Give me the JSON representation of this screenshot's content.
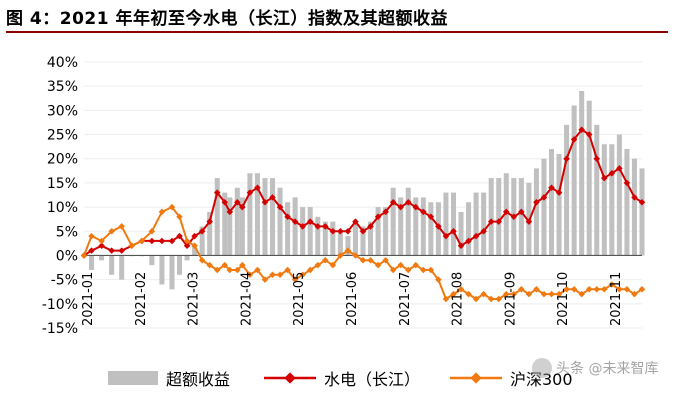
{
  "figure": {
    "title": "图 4：2021 年年初至今水电（长江）指数及其超额收益"
  },
  "chart_data": {
    "type": "bar",
    "title": "图 4：2021 年年初至今水电（长江）指数及其超额收益",
    "xlabel": "",
    "ylabel": "",
    "ylim": [
      -15,
      40
    ],
    "yticks": [
      "-15%",
      "-10%",
      "-5%",
      "0%",
      "5%",
      "10%",
      "15%",
      "20%",
      "25%",
      "30%",
      "35%",
      "40%"
    ],
    "ytick_values": [
      -15,
      -10,
      -5,
      0,
      5,
      10,
      15,
      20,
      25,
      30,
      35,
      40
    ],
    "xticks": [
      "2021-01",
      "2021-02",
      "2021-03",
      "2021-04",
      "2021-05",
      "2021-06",
      "2021-07",
      "2021-08",
      "2021-09",
      "2021-10",
      "2021-11"
    ],
    "x_start": "2021-01-04",
    "x_end": "2021-11-12",
    "legend": [
      "超额收益",
      "水电（长江）",
      "沪深300"
    ],
    "series": [
      {
        "name": "水电（长江）",
        "type": "line",
        "color": "#d40000",
        "x": [
          0,
          3,
          7,
          11,
          15,
          19,
          23,
          27,
          31,
          35,
          38,
          41,
          44,
          47,
          50,
          53,
          56,
          58,
          61,
          63,
          66,
          69,
          72,
          75,
          78,
          81,
          84,
          87,
          90,
          93,
          96,
          99,
          102,
          105,
          108,
          111,
          114,
          117,
          120,
          123,
          126,
          129,
          132,
          135,
          138,
          141,
          144,
          147,
          150,
          153,
          156,
          159,
          162,
          165,
          168,
          171,
          174,
          177,
          180,
          183,
          186,
          189,
          192,
          195,
          198,
          201,
          204,
          207,
          210,
          213,
          216,
          219,
          222
        ],
        "y": [
          0,
          1,
          2,
          1,
          1,
          2,
          3,
          3,
          3,
          3,
          4,
          2,
          4,
          5,
          7,
          13,
          11,
          9,
          11,
          10,
          13,
          14,
          11,
          12,
          10,
          8,
          7,
          6,
          7,
          6,
          6,
          5,
          5,
          5,
          7,
          5,
          6,
          8,
          9,
          11,
          10,
          11,
          10,
          9,
          8,
          6,
          4,
          5,
          2,
          3,
          4,
          5,
          7,
          7,
          9,
          8,
          9,
          7,
          11,
          12,
          14,
          13,
          20,
          24,
          26,
          25,
          20,
          16,
          17,
          18,
          15,
          12,
          11
        ]
      },
      {
        "name": "沪深300",
        "type": "line",
        "color": "#f07a10",
        "x": [
          0,
          3,
          7,
          11,
          15,
          19,
          23,
          27,
          31,
          35,
          38,
          41,
          44,
          47,
          50,
          53,
          56,
          58,
          61,
          63,
          66,
          69,
          72,
          75,
          78,
          81,
          84,
          87,
          90,
          93,
          96,
          99,
          102,
          105,
          108,
          111,
          114,
          117,
          120,
          123,
          126,
          129,
          132,
          135,
          138,
          141,
          144,
          147,
          150,
          153,
          156,
          159,
          162,
          165,
          168,
          171,
          174,
          177,
          180,
          183,
          186,
          189,
          192,
          195,
          198,
          201,
          204,
          207,
          210,
          213,
          216,
          219,
          222
        ],
        "y": [
          0,
          4,
          3,
          5,
          6,
          2,
          3,
          5,
          9,
          10,
          8,
          3,
          2,
          -1,
          -2,
          -3,
          -2,
          -3,
          -3,
          -2,
          -4,
          -3,
          -5,
          -4,
          -4,
          -3,
          -5,
          -4,
          -3,
          -2,
          -1,
          -2,
          0,
          1,
          0,
          -1,
          -1,
          -2,
          -1,
          -3,
          -2,
          -3,
          -2,
          -3,
          -3,
          -5,
          -9,
          -8,
          -7,
          -8,
          -9,
          -8,
          -9,
          -9,
          -8,
          -8,
          -7,
          -8,
          -7,
          -8,
          -8,
          -8,
          -7,
          -7,
          -8,
          -7,
          -7,
          -7,
          -6,
          -7,
          -7,
          -8,
          -7
        ]
      },
      {
        "name": "超额收益",
        "type": "bar",
        "color": "#c0c0c0",
        "x": [
          0,
          3,
          7,
          11,
          15,
          19,
          23,
          27,
          31,
          35,
          38,
          41,
          44,
          47,
          50,
          53,
          56,
          58,
          61,
          63,
          66,
          69,
          72,
          75,
          78,
          81,
          84,
          87,
          90,
          93,
          96,
          99,
          102,
          105,
          108,
          111,
          114,
          117,
          120,
          123,
          126,
          129,
          132,
          135,
          138,
          141,
          144,
          147,
          150,
          153,
          156,
          159,
          162,
          165,
          168,
          171,
          174,
          177,
          180,
          183,
          186,
          189,
          192,
          195,
          198,
          201,
          204,
          207,
          210,
          213,
          216,
          219,
          222
        ],
        "y": [
          0,
          -3,
          -1,
          -4,
          -5,
          0,
          0,
          -2,
          -6,
          -7,
          -4,
          -1,
          2,
          6,
          9,
          16,
          13,
          12,
          14,
          12,
          17,
          17,
          16,
          16,
          14,
          11,
          12,
          10,
          10,
          8,
          7,
          7,
          5,
          4,
          7,
          6,
          7,
          10,
          10,
          14,
          12,
          14,
          12,
          12,
          11,
          11,
          13,
          13,
          9,
          11,
          13,
          13,
          16,
          16,
          17,
          16,
          16,
          15,
          18,
          20,
          22,
          21,
          27,
          31,
          34,
          32,
          27,
          23,
          23,
          25,
          22,
          20,
          18
        ]
      }
    ],
    "notes": "x = trading-day index from 2021-01-04 (approx. 222 trading days to 2021-11-12); values read approximately from gridlines, in percent"
  },
  "watermark": {
    "text": "头条 @未来智库"
  }
}
